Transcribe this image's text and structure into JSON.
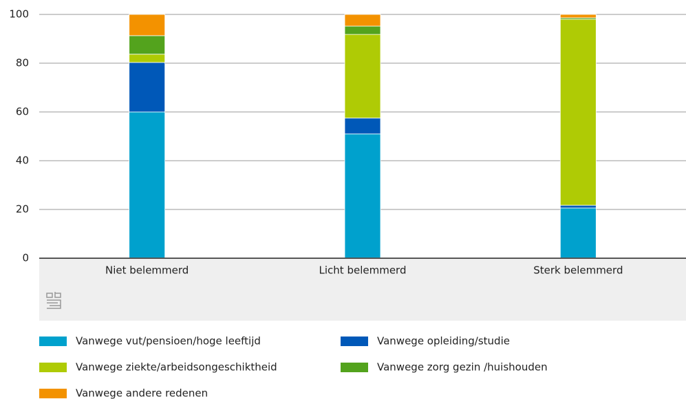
{
  "chart_data": {
    "type": "stacked_bar",
    "categories": [
      "Niet belemmerd",
      "Licht belemmerd",
      "Sterk belemmerd"
    ],
    "series": [
      {
        "name": "Vanwege vut/pensioen/hoge leeftijd",
        "color": "#00a1cd",
        "values": [
          60,
          51,
          20.6
        ]
      },
      {
        "name": "Vanwege opleiding/studie",
        "color": "#0058b8",
        "values": [
          20.3,
          6.5,
          1.1
        ]
      },
      {
        "name": "Vanwege ziekte/arbeidsongeschiktheid",
        "color": "#afcb05",
        "values": [
          3.4,
          34.3,
          76.3
        ]
      },
      {
        "name": "Vanwege zorg gezin /huishouden",
        "color": "#53a31d",
        "values": [
          7.6,
          3.4,
          0.6
        ]
      },
      {
        "name": "Vanwege andere redenen",
        "color": "#f39200",
        "values": [
          8.7,
          4.8,
          1.4
        ]
      }
    ],
    "ylim": [
      0,
      100
    ],
    "yticks": [
      0,
      20,
      40,
      60,
      80,
      100
    ],
    "grid": true
  }
}
